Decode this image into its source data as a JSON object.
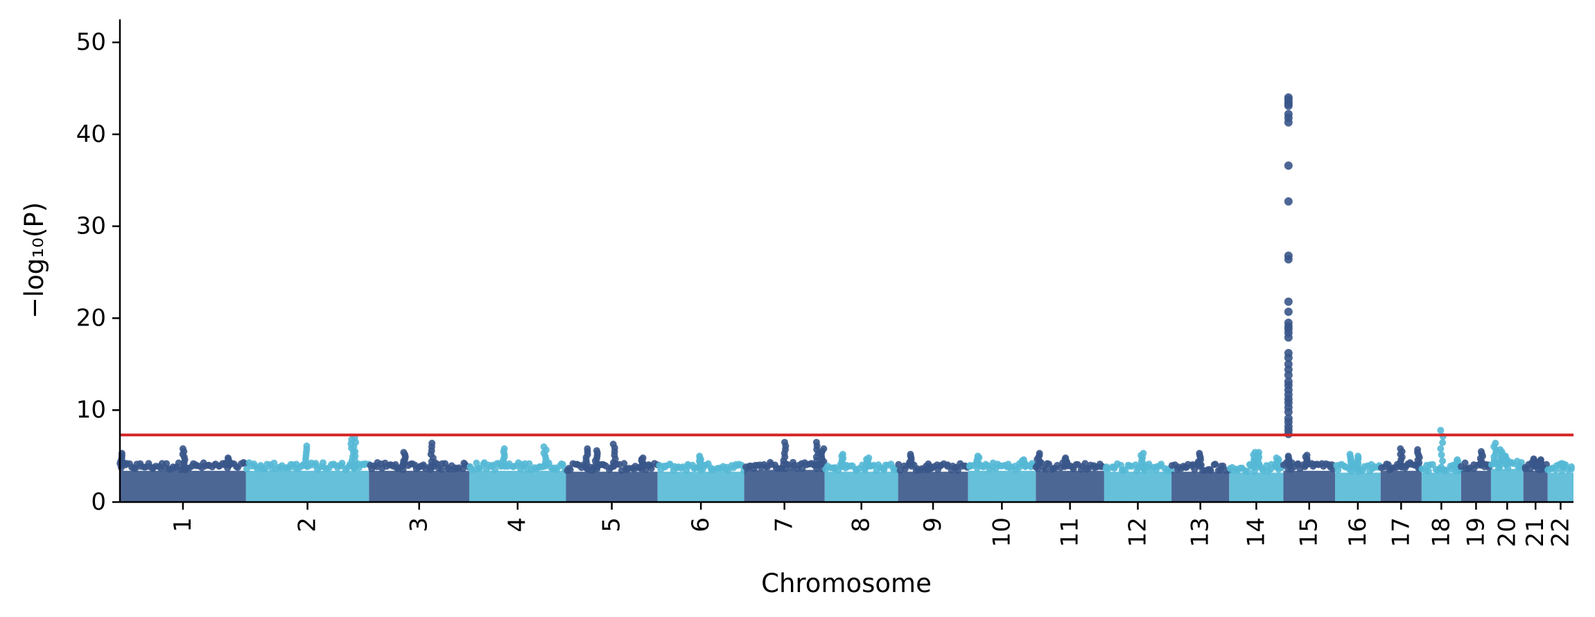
{
  "chart_data": {
    "type": "scatter",
    "subtype": "manhattan",
    "xlabel": "Chromosome",
    "ylabel": "−log₁₀(P)",
    "ylim": [
      0,
      52.5
    ],
    "yticks": [
      0,
      10,
      20,
      30,
      40,
      50
    ],
    "threshold": 7.3,
    "colors": {
      "odd": "#3a5689",
      "even": "#55b9d6",
      "threshold": "#d62728"
    },
    "chromosomes": [
      {
        "label": "1",
        "length": 249,
        "baseline": 4.0,
        "peaks": [
          [
            3,
            5.3
          ],
          [
            126,
            5.8
          ],
          [
            215,
            4.8
          ]
        ]
      },
      {
        "label": "2",
        "length": 243,
        "baseline": 4.0,
        "peaks": [
          [
            120,
            6.1
          ],
          [
            210,
            6.8
          ],
          [
            215,
            7.0
          ]
        ]
      },
      {
        "label": "3",
        "length": 198,
        "baseline": 4.0,
        "peaks": [
          [
            70,
            5.4
          ],
          [
            125,
            6.4
          ]
        ]
      },
      {
        "label": "4",
        "length": 191,
        "baseline": 4.0,
        "peaks": [
          [
            70,
            5.8
          ],
          [
            150,
            6.0
          ]
        ]
      },
      {
        "label": "5",
        "length": 181,
        "baseline": 3.9,
        "peaks": [
          [
            40,
            5.8
          ],
          [
            60,
            5.6
          ],
          [
            95,
            6.3
          ],
          [
            150,
            4.8
          ]
        ]
      },
      {
        "label": "6",
        "length": 171,
        "baseline": 3.9,
        "peaks": [
          [
            85,
            5.0
          ]
        ]
      },
      {
        "label": "7",
        "length": 159,
        "baseline": 4.1,
        "peaks": [
          [
            80,
            6.5
          ],
          [
            145,
            6.5
          ],
          [
            155,
            5.8
          ]
        ]
      },
      {
        "label": "8",
        "length": 145,
        "baseline": 3.9,
        "peaks": [
          [
            35,
            5.2
          ],
          [
            85,
            4.8
          ]
        ]
      },
      {
        "label": "9",
        "length": 138,
        "baseline": 3.9,
        "peaks": [
          [
            25,
            5.2
          ],
          [
            60,
            3.5
          ]
        ]
      },
      {
        "label": "10",
        "length": 134,
        "baseline": 4.0,
        "peaks": [
          [
            20,
            5.0
          ],
          [
            110,
            4.6
          ]
        ]
      },
      {
        "label": "11",
        "length": 135,
        "baseline": 4.0,
        "peaks": [
          [
            5,
            5.3
          ],
          [
            60,
            4.8
          ]
        ]
      },
      {
        "label": "12",
        "length": 133,
        "baseline": 3.9,
        "peaks": [
          [
            75,
            5.3
          ]
        ]
      },
      {
        "label": "13",
        "length": 114,
        "baseline": 3.9,
        "peaks": [
          [
            55,
            5.3
          ]
        ]
      },
      {
        "label": "14",
        "length": 107,
        "baseline": 3.8,
        "peaks": [
          [
            50,
            5.4
          ],
          [
            58,
            5.4
          ],
          [
            95,
            4.8
          ]
        ]
      },
      {
        "label": "15",
        "length": 102,
        "baseline": 4.0,
        "peaks": [
          [
            10,
            5.0
          ],
          [
            45,
            5.1
          ]
        ],
        "hit": {
          "pos": 10,
          "values": [
            44,
            43.8,
            43.5,
            43.3,
            43.1,
            42.2,
            41.8,
            41.3,
            36.6,
            32.7,
            26.8,
            26.4,
            21.8,
            20.7,
            19.5,
            19.1,
            18.8,
            18.4,
            17.9,
            16.2,
            15.7,
            15.0,
            14.4,
            13.8,
            13.1,
            12.7,
            12.2,
            11.7,
            11.2,
            10.8,
            10.3,
            9.8,
            9.1,
            8.7,
            8.2,
            7.8,
            7.4
          ]
        }
      },
      {
        "label": "16",
        "length": 90,
        "baseline": 3.8,
        "peaks": [
          [
            30,
            5.2
          ],
          [
            45,
            5.0
          ]
        ]
      },
      {
        "label": "17",
        "length": 81,
        "baseline": 4.0,
        "peaks": [
          [
            40,
            5.8
          ],
          [
            75,
            5.7
          ]
        ]
      },
      {
        "label": "18",
        "length": 78,
        "baseline": 3.8,
        "peaks": [
          [
            40,
            7.8
          ],
          [
            70,
            4.6
          ]
        ]
      },
      {
        "label": "19",
        "length": 59,
        "baseline": 4.0,
        "peaks": [
          [
            40,
            5.5
          ]
        ]
      },
      {
        "label": "20",
        "length": 64,
        "baseline": 4.2,
        "peaks": [
          [
            8,
            6.4
          ],
          [
            20,
            5.7
          ],
          [
            30,
            5.0
          ]
        ]
      },
      {
        "label": "21",
        "length": 48,
        "baseline": 4.0,
        "peaks": [
          [
            20,
            4.7
          ],
          [
            32,
            4.6
          ]
        ]
      },
      {
        "label": "22",
        "length": 51,
        "baseline": 3.8,
        "peaks": [
          [
            30,
            4.2
          ]
        ]
      }
    ]
  }
}
